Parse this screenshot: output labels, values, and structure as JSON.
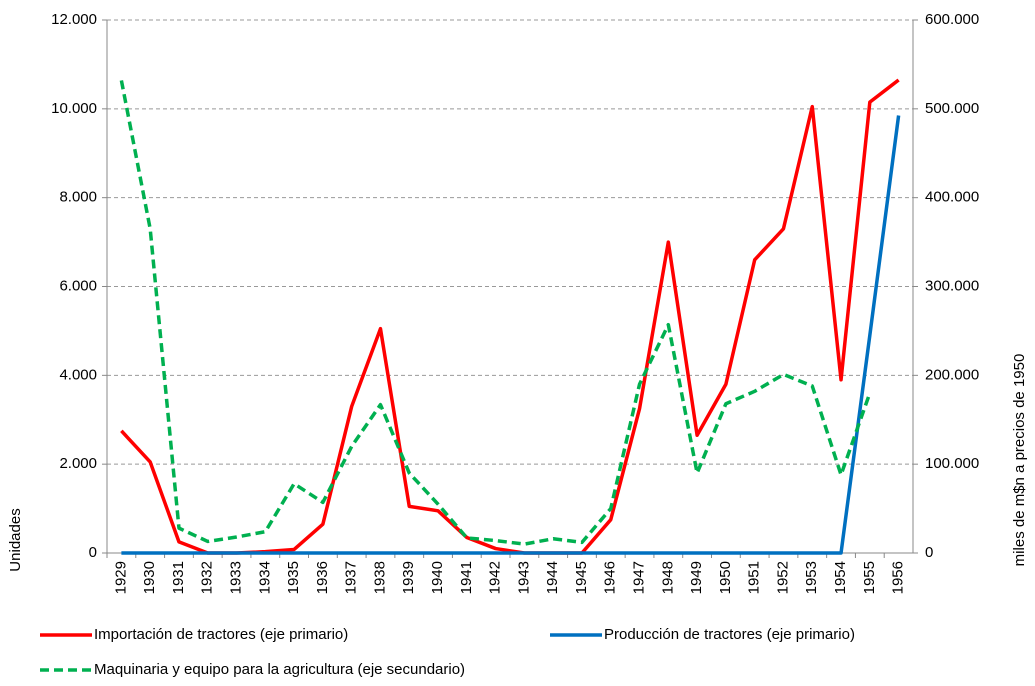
{
  "chart_data": {
    "type": "line",
    "categories": [
      "1929",
      "1930",
      "1931",
      "1932",
      "1933",
      "1934",
      "1935",
      "1936",
      "1937",
      "1938",
      "1939",
      "1940",
      "1941",
      "1942",
      "1943",
      "1944",
      "1945",
      "1946",
      "1947",
      "1948",
      "1949",
      "1950",
      "1951",
      "1952",
      "1953",
      "1954",
      "1955",
      "1956"
    ],
    "series": [
      {
        "name": "Importación de tractores (eje primario)",
        "color": "#ff0000",
        "dash": false,
        "values": [
          2750,
          2050,
          250,
          0,
          0,
          30,
          80,
          650,
          3300,
          5050,
          1050,
          950,
          350,
          100,
          0,
          0,
          0,
          750,
          3250,
          7000,
          2650,
          3800,
          6600,
          7300,
          10050,
          3900,
          10150,
          10650
        ]
      },
      {
        "name": "Producción de tractores (eje primario)",
        "color": "#0070c0",
        "dash": false,
        "values": [
          0,
          0,
          0,
          0,
          0,
          0,
          0,
          0,
          0,
          0,
          0,
          0,
          0,
          0,
          0,
          0,
          0,
          0,
          0,
          0,
          0,
          0,
          0,
          0,
          0,
          0,
          4900,
          9850
        ]
      },
      {
        "name": "Maquinaria y equipo para la agricultura (eje secundario)",
        "color": "#00b050",
        "dash": true,
        "axis": "y2",
        "values": [
          532000,
          365000,
          28000,
          13000,
          18000,
          24000,
          78000,
          57000,
          120000,
          167000,
          90000,
          55000,
          17000,
          14000,
          10000,
          16000,
          12000,
          50000,
          190000,
          257000,
          90000,
          168000,
          182000,
          201000,
          188000,
          88000,
          180000,
          null
        ]
      }
    ],
    "y_label": "Unidades",
    "y2_label": "miles de m$n a precios de 1950",
    "ylim": [
      0,
      12000
    ],
    "yticks": [
      0,
      {
        "value": 2000,
        "label": "2.000"
      },
      {
        "value": 4000,
        "label": "4.000"
      },
      {
        "value": 6000,
        "label": "6.000"
      },
      {
        "value": 8000,
        "label": "8.000"
      },
      {
        "value": 10000,
        "label": "10.000"
      },
      {
        "value": 12000,
        "label": "12.000"
      }
    ],
    "y2lim": [
      0,
      600000
    ],
    "y2ticks": [
      0,
      {
        "value": 100000,
        "label": "100.000"
      },
      {
        "value": 200000,
        "label": "200.000"
      },
      {
        "value": 300000,
        "label": "300.000"
      },
      {
        "value": 400000,
        "label": "400.000"
      },
      {
        "value": 500000,
        "label": "500.000"
      },
      {
        "value": 600000,
        "label": "600.000"
      }
    ],
    "grid": true
  }
}
